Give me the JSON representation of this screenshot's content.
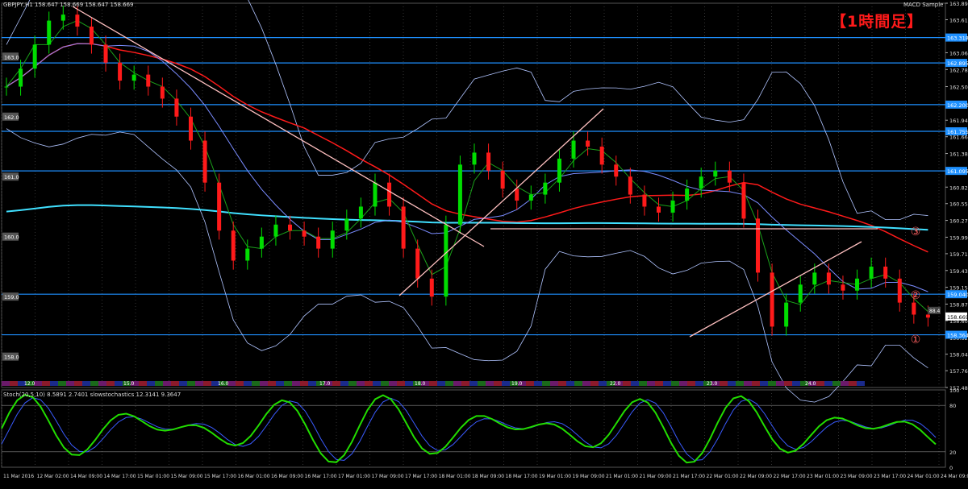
{
  "chart": {
    "symbol_line": "GBPJPY,H1  158.647 158.669 158.647 158.669",
    "indicator_name": "MACD Sample",
    "timeframe_label": "【1時間足】",
    "price_scale": [
      "163.890",
      "163.615",
      "163.340",
      "163.065",
      "162.785",
      "162.500",
      "162.225",
      "161.940",
      "161.665",
      "161.385",
      "161.105",
      "160.825",
      "160.550",
      "160.270",
      "159.990",
      "159.715",
      "159.435",
      "159.155",
      "158.875",
      "158.600",
      "158.320",
      "158.040",
      "157.765",
      "157.485"
    ],
    "left_marks": [
      "163.0",
      "162.0",
      "161.0",
      "160.0",
      "159.0",
      "158.0"
    ],
    "level_tags": [
      "163.318",
      "162.895",
      "162.200",
      "161.755",
      "161.095",
      "159.040",
      "158.364"
    ],
    "price_tag": "158.669",
    "small_tag": "88.4",
    "circled_numbers": [
      "③",
      "②",
      "①"
    ],
    "day_tags": [
      "12.0",
      "15.0",
      "16.0",
      "17.0",
      "18.0",
      "19.0",
      "22.0",
      "23.0",
      "24.0"
    ],
    "time_labels": [
      "11 Mar 2016",
      "12 Mar 02:00",
      "14 Mar 09:00",
      "14 Mar 17:00",
      "15 Mar 01:00",
      "15 Mar 09:00",
      "15 Mar 17:00",
      "16 Mar 01:00",
      "16 Mar 09:00",
      "16 Mar 17:00",
      "17 Mar 01:00",
      "17 Mar 09:00",
      "17 Mar 17:00",
      "18 Mar 01:00",
      "18 Mar 09:00",
      "18 Mar 17:00",
      "19 Mar 01:00",
      "19 Mar 09:00",
      "21 Mar 01:00",
      "21 Mar 09:00",
      "21 Mar 17:00",
      "22 Mar 01:00",
      "22 Mar 09:00",
      "22 Mar 17:00",
      "23 Mar 01:00",
      "23 Mar 09:00",
      "23 Mar 17:00",
      "24 Mar 01:00",
      "24 Mar 09:00"
    ],
    "stoch_title": "Stoch(20,5,10) 8.5891 2.7401  slowstochastics 12.3141 9.3647",
    "stoch_scale": [
      "100",
      "80",
      "20",
      "0"
    ]
  },
  "chart_data": {
    "type": "line",
    "title": "GBPJPY H1",
    "ylim": [
      157.485,
      163.89
    ],
    "horizontal_levels": [
      163.318,
      162.895,
      162.2,
      161.755,
      161.095,
      159.04,
      158.364
    ],
    "close": [
      162.5,
      162.8,
      163.2,
      163.6,
      163.7,
      163.5,
      163.2,
      162.9,
      162.6,
      162.7,
      162.5,
      162.3,
      162.0,
      161.6,
      160.9,
      160.1,
      159.6,
      159.8,
      160.0,
      160.2,
      160.1,
      160.0,
      159.8,
      160.1,
      160.3,
      160.5,
      160.9,
      160.5,
      159.8,
      159.3,
      159.0,
      160.2,
      161.2,
      161.4,
      161.1,
      160.8,
      160.6,
      160.7,
      160.9,
      161.3,
      161.6,
      161.5,
      161.2,
      161.0,
      160.7,
      160.5,
      160.4,
      160.6,
      160.8,
      161.0,
      161.1,
      160.9,
      160.3,
      159.4,
      158.5,
      158.9,
      159.2,
      159.4,
      159.2,
      159.1,
      159.3,
      159.5,
      159.3,
      158.9,
      158.7,
      158.65
    ],
    "colors": {
      "up": "#00dd00",
      "down": "#ff1a1a",
      "level": "#1e90ff",
      "trend": "#ffc0c0",
      "ema": "#ff1a1a",
      "sma": "#40e0ff",
      "bb": "#b0c4ff",
      "stoch_k": "#22dd00",
      "stoch_d": "#3a5bff"
    },
    "stochastic": {
      "range": [
        0,
        100
      ],
      "levels": [
        80,
        20
      ]
    }
  }
}
